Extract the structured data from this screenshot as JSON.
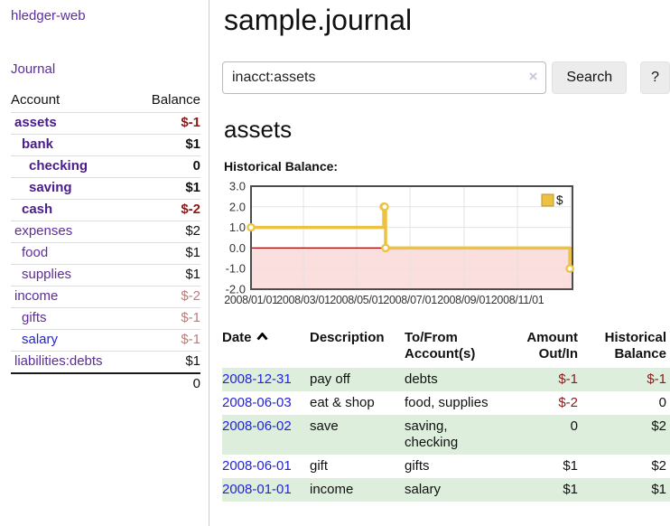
{
  "app": {
    "title": "hledger-web"
  },
  "sidebar": {
    "journal_link": "Journal",
    "accounts_table": {
      "account_header": "Account",
      "balance_header": "Balance",
      "rows": [
        {
          "name": "assets",
          "indent": 1,
          "bold": true,
          "balance": "$-1",
          "neg": "strong",
          "link_color": "purple"
        },
        {
          "name": "bank",
          "indent": 2,
          "bold": true,
          "balance": "$1",
          "neg": "none",
          "link_color": "purple"
        },
        {
          "name": "checking",
          "indent": 3,
          "bold": true,
          "balance": "0",
          "neg": "none",
          "link_color": "purple"
        },
        {
          "name": "saving",
          "indent": 3,
          "bold": true,
          "balance": "$1",
          "neg": "none",
          "link_color": "purple"
        },
        {
          "name": "cash",
          "indent": 2,
          "bold": true,
          "balance": "$-2",
          "neg": "strong",
          "link_color": "purple"
        },
        {
          "name": "expenses",
          "indent": 1,
          "bold": false,
          "balance": "$2",
          "neg": "none",
          "link_color": "purple"
        },
        {
          "name": "food",
          "indent": 2,
          "bold": false,
          "balance": "$1",
          "neg": "none",
          "link_color": "purple"
        },
        {
          "name": "supplies",
          "indent": 2,
          "bold": false,
          "balance": "$1",
          "neg": "none",
          "link_color": "purple"
        },
        {
          "name": "income",
          "indent": 1,
          "bold": false,
          "balance": "$-2",
          "neg": "soft",
          "link_color": "purple"
        },
        {
          "name": "gifts",
          "indent": 2,
          "bold": false,
          "balance": "$-1",
          "neg": "soft",
          "link_color": "purple"
        },
        {
          "name": "salary",
          "indent": 2,
          "bold": false,
          "balance": "$-1",
          "neg": "soft",
          "link_color": "blue"
        },
        {
          "name": "liabilities:debts",
          "indent": 1,
          "bold": false,
          "balance": "$1",
          "neg": "none",
          "link_color": "purple"
        }
      ],
      "total": "0"
    }
  },
  "header": {
    "title": "sample.journal"
  },
  "search": {
    "value": "inacct:assets",
    "clear_label": "×",
    "button": "Search",
    "help_button": "?"
  },
  "account_page": {
    "heading": "assets",
    "chart_label": "Historical Balance:"
  },
  "chart_data": {
    "type": "line",
    "step": true,
    "title": "Historical Balance:",
    "x_domain": [
      "2008-01-01",
      "2009-01-03"
    ],
    "ylim": [
      -2,
      3
    ],
    "y_ticks": [
      {
        "v": 3,
        "label": "3.0"
      },
      {
        "v": 2,
        "label": "2.0"
      },
      {
        "v": 1,
        "label": "1.0"
      },
      {
        "v": 0,
        "label": "0.0"
      },
      {
        "v": -1,
        "label": "-1.0"
      },
      {
        "v": -2,
        "label": "-2.0"
      }
    ],
    "x_ticks": [
      {
        "date": "2008-01-01",
        "label": "2008/01/01"
      },
      {
        "date": "2008-03-01",
        "label": "2008/03/01"
      },
      {
        "date": "2008-05-01",
        "label": "2008/05/01"
      },
      {
        "date": "2008-07-01",
        "label": "2008/07/01"
      },
      {
        "date": "2008-09-01",
        "label": "2008/09/01"
      },
      {
        "date": "2008-11-01",
        "label": "2008/11/01"
      },
      {
        "date": "2009-01-01",
        "label": ""
      }
    ],
    "series": [
      {
        "name": "$",
        "color": "#edc240",
        "points": [
          {
            "date": "2008-01-01",
            "value": 1
          },
          {
            "date": "2008-06-01",
            "value": 2
          },
          {
            "date": "2008-06-02",
            "value": 2
          },
          {
            "date": "2008-06-03",
            "value": 0
          },
          {
            "date": "2008-12-31",
            "value": -1
          }
        ]
      }
    ],
    "legend_position": "top-right",
    "negative_region_color": "#fbdede",
    "zero_line_color": "#a40000",
    "grid_color": "#e3e3e3",
    "border_color": "#4d4d4d"
  },
  "register": {
    "headers": [
      {
        "l1": "Date",
        "l2": "",
        "sorted": "asc"
      },
      {
        "l1": "Description",
        "l2": ""
      },
      {
        "l1": "To/From",
        "l2": "Account(s)"
      },
      {
        "l1": "Amount",
        "l2": "Out/In"
      },
      {
        "l1": "Historical",
        "l2": "Balance"
      }
    ],
    "rows": [
      {
        "date": "2008-12-31",
        "description": "pay off",
        "accounts": "debts",
        "amount": "$-1",
        "amount_neg": true,
        "balance": "$-1",
        "balance_neg": true
      },
      {
        "date": "2008-06-03",
        "description": "eat & shop",
        "accounts": "food, supplies",
        "amount": "$-2",
        "amount_neg": true,
        "balance": "0",
        "balance_neg": false
      },
      {
        "date": "2008-06-02",
        "description": "save",
        "accounts": [
          "saving,",
          "checking"
        ],
        "amount": "0",
        "amount_neg": false,
        "balance": "$2",
        "balance_neg": false
      },
      {
        "date": "2008-06-01",
        "description": "gift",
        "accounts": "gifts",
        "amount": "$1",
        "amount_neg": false,
        "balance": "$2",
        "balance_neg": false
      },
      {
        "date": "2008-01-01",
        "description": "income",
        "accounts": "salary",
        "amount": "$1",
        "amount_neg": false,
        "balance": "$1",
        "balance_neg": false
      }
    ]
  },
  "colors": {
    "link_purple": "#5c2d9c",
    "bold_account_purple": "#4a1b8c",
    "link_blue": "#2323dd",
    "negative_strong": "#8b1a1a",
    "negative_soft": "#bd7b7b",
    "row_stripe_green": "#ddeedd",
    "accent_gold": "#edc240"
  }
}
